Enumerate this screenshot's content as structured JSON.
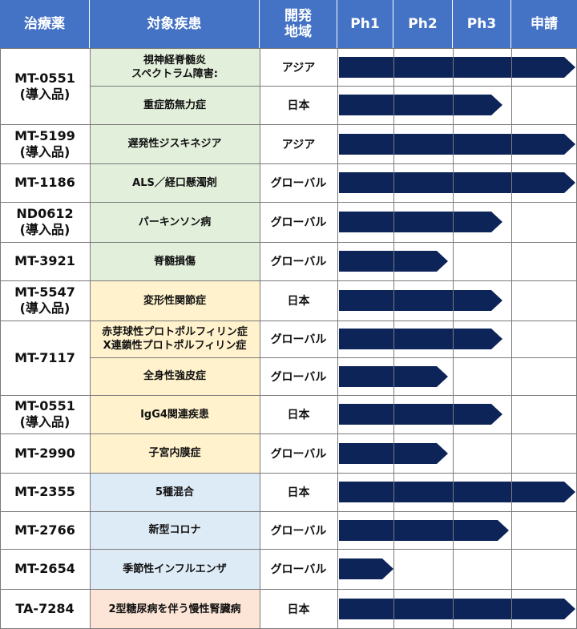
{
  "headers": {
    "drug": "治療薬",
    "disease": "対象疾患",
    "region": "開発\n地域",
    "ph1": "Ph1",
    "ph2": "Ph2",
    "ph3": "Ph3",
    "filing": "申請"
  },
  "colors": {
    "header_bg": "#4472c4",
    "bar": "#0d2459",
    "green": "#e2efda",
    "yellow": "#fff2cc",
    "blue": "#ddebf7",
    "pink": "#fce4d6"
  },
  "drug_groups": [
    {
      "label": "MT-0551\n(導入品)"
    },
    {
      "label": "MT-5199\n(導入品)"
    },
    {
      "label": "MT-1186"
    },
    {
      "label": "ND0612\n(導入品)"
    },
    {
      "label": "MT-3921"
    },
    {
      "label": "MT-5547\n(導入品)"
    },
    {
      "label": "MT-7117"
    },
    {
      "label": "MT-0551\n(導入品)"
    },
    {
      "label": "MT-2990"
    },
    {
      "label": "MT-2355"
    },
    {
      "label": "MT-2766"
    },
    {
      "label": "MT-2654"
    },
    {
      "label": "TA-7284"
    }
  ],
  "rows": [
    {
      "disease": "視神経脊髄炎\nスペクトラム障害:",
      "region": "アジア",
      "stage": "申請",
      "progress": 1.0,
      "area_color": "green"
    },
    {
      "disease": "重症筋無力症",
      "region": "日本",
      "stage": "Ph3",
      "progress": 0.69,
      "area_color": "green"
    },
    {
      "disease": "遅発性ジスキネジア",
      "region": "アジア",
      "stage": "申請",
      "progress": 1.0,
      "area_color": "green"
    },
    {
      "disease": "ALS／経口懸濁剤",
      "region": "グローバル",
      "stage": "申請",
      "progress": 1.0,
      "area_color": "green"
    },
    {
      "disease": "パーキンソン病",
      "region": "グローバル",
      "stage": "Ph3",
      "progress": 0.69,
      "area_color": "green"
    },
    {
      "disease": "脊髄損傷",
      "region": "グローバル",
      "stage": "Ph2",
      "progress": 0.46,
      "area_color": "green"
    },
    {
      "disease": "変形性関節症",
      "region": "日本",
      "stage": "Ph3",
      "progress": 0.69,
      "area_color": "yellow"
    },
    {
      "disease": "赤芽球性プロトポルフィリン症\nX連鎖性プロトポルフィリン症",
      "region": "グローバル",
      "stage": "Ph3",
      "progress": 0.69,
      "area_color": "yellow"
    },
    {
      "disease": "全身性強皮症",
      "region": "グローバル",
      "stage": "Ph2",
      "progress": 0.46,
      "area_color": "yellow"
    },
    {
      "disease": "IgG4関連疾患",
      "region": "日本",
      "stage": "Ph3",
      "progress": 0.69,
      "area_color": "yellow"
    },
    {
      "disease": "子宮内膜症",
      "region": "グローバル",
      "stage": "Ph2",
      "progress": 0.46,
      "area_color": "yellow"
    },
    {
      "disease": "5種混合",
      "region": "日本",
      "stage": "申請",
      "progress": 1.0,
      "area_color": "blue"
    },
    {
      "disease": "新型コロナ",
      "region": "グローバル",
      "stage": "Ph3",
      "progress": 0.72,
      "area_color": "blue"
    },
    {
      "disease": "季節性インフルエンザ",
      "region": "グローバル",
      "stage": "Ph1",
      "progress": 0.23,
      "area_color": "blue"
    },
    {
      "disease": "2型糖尿病を伴う慢性腎臓病",
      "region": "日本",
      "stage": "申請",
      "progress": 1.0,
      "area_color": "pink"
    }
  ]
}
